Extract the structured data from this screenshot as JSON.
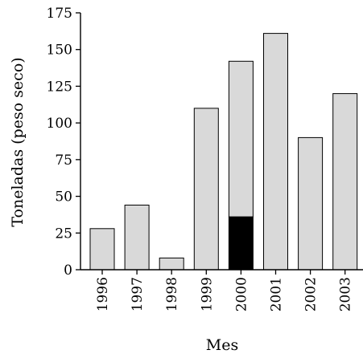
{
  "chart_data": {
    "type": "bar",
    "stacked": true,
    "title": "",
    "xlabel": "Mes",
    "ylabel": "Toneladas (peso seco)",
    "categories": [
      "1996",
      "1997",
      "1998",
      "1999",
      "2000",
      "2001",
      "2002",
      "2003"
    ],
    "series": [
      {
        "color": "#000000",
        "values": [
          0,
          0,
          0,
          0,
          36,
          0,
          0,
          0
        ]
      },
      {
        "color": "#d9d9d9",
        "values": [
          28,
          44,
          8,
          110,
          106,
          161,
          90,
          120
        ]
      }
    ],
    "ylim": [
      0,
      175
    ],
    "yticks": [
      0,
      25,
      50,
      75,
      100,
      125,
      150,
      175
    ],
    "grid": false,
    "legend": "none",
    "bar_edge_color": "#000000"
  }
}
